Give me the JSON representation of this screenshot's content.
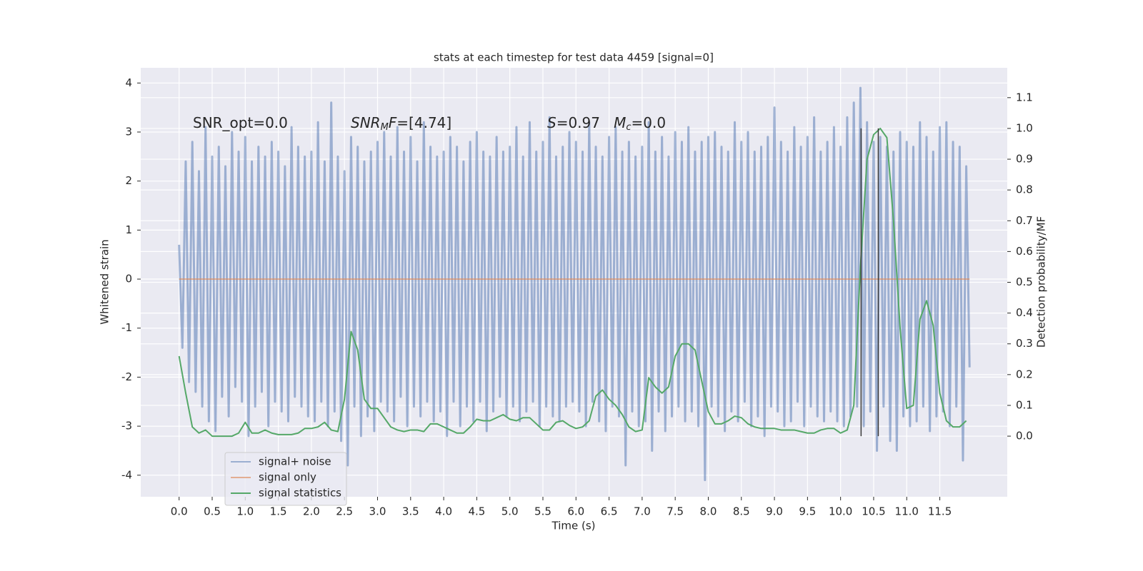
{
  "chart_data": {
    "type": "line",
    "title": "stats at each timestep for test data 4459 [signal=0]",
    "xlabel": "Time (s)",
    "ylabel": "Whitened strain",
    "y2label": "Detection probability/MF",
    "xlim": [
      -0.58,
      12.52
    ],
    "ylim": [
      -4.44,
      4.31
    ],
    "y2lim": [
      -0.197,
      1.197
    ],
    "xticks": [
      {
        "value": 0,
        "label": "0.0"
      },
      0.5,
      {
        "value": 1,
        "label": "1.0"
      },
      1.5,
      {
        "value": 2,
        "label": "2.0"
      },
      2.5,
      {
        "value": 3,
        "label": "3.0"
      },
      3.5,
      {
        "value": 4,
        "label": "4.0"
      },
      4.5,
      {
        "value": 5,
        "label": "5.0"
      },
      5.5,
      {
        "value": 6,
        "label": "6.0"
      },
      6.5,
      {
        "value": 7,
        "label": "7.0"
      },
      7.5,
      {
        "value": 8,
        "label": "8.0"
      },
      8.5,
      {
        "value": 9,
        "label": "9.0"
      },
      9.5,
      {
        "value": 10,
        "label": "10.0"
      },
      10.5,
      {
        "value": 11,
        "label": "11.0"
      },
      11.5
    ],
    "yticks": [
      -4,
      -3,
      -2,
      -1,
      0,
      1,
      2,
      3,
      4
    ],
    "y2ticks": [
      {
        "value": 0,
        "label": "0.0"
      },
      0.1,
      0.2,
      0.3,
      0.4,
      0.5,
      0.6,
      0.7,
      0.8,
      0.9,
      {
        "value": 1,
        "label": "1.0"
      },
      1.1
    ],
    "grid": true,
    "legend": "lower left",
    "annotations": [
      [
        {
          "text": "SNR_opt=0.0",
          "style": "normal"
        }
      ],
      [
        {
          "text": "SNR",
          "style": "italic"
        },
        {
          "text": "M",
          "style": "sub"
        },
        {
          "text": "F",
          "style": "italic"
        },
        {
          "text": "=[4.74]",
          "style": "normal"
        }
      ],
      [
        {
          "text": "S",
          "style": "italic"
        },
        {
          "text": "=0.97   ",
          "style": "normal"
        },
        {
          "text": "M",
          "style": "italic"
        },
        {
          "text": "c",
          "style": "sub"
        },
        {
          "text": "=0.0",
          "style": "normal"
        }
      ]
    ],
    "vlines": {
      "x": [
        10.31,
        10.57
      ],
      "ymin": 0,
      "ymax": 1.0,
      "axis": "y2",
      "color": "#3a3a3a"
    },
    "series": [
      {
        "name": "signal+ noise",
        "color": "#4c72b0",
        "opacity": 0.5,
        "x": [
          0,
          0.05,
          0.1,
          0.15,
          0.2,
          0.25,
          0.3,
          0.35,
          0.4,
          0.45,
          0.5,
          0.55,
          0.6,
          0.65,
          0.7,
          0.75,
          0.8,
          0.85,
          0.9,
          0.95,
          1,
          1.05,
          1.1,
          1.15,
          1.2,
          1.25,
          1.3,
          1.35,
          1.4,
          1.45,
          1.5,
          1.55,
          1.6,
          1.65,
          1.7,
          1.75,
          1.8,
          1.85,
          1.9,
          1.95,
          2,
          2.05,
          2.1,
          2.15,
          2.2,
          2.25,
          2.3,
          2.35,
          2.4,
          2.45,
          2.5,
          2.55,
          2.6,
          2.65,
          2.7,
          2.75,
          2.8,
          2.85,
          2.9,
          2.95,
          3,
          3.05,
          3.1,
          3.15,
          3.2,
          3.25,
          3.3,
          3.35,
          3.4,
          3.45,
          3.5,
          3.55,
          3.6,
          3.65,
          3.7,
          3.75,
          3.8,
          3.85,
          3.9,
          3.95,
          4,
          4.05,
          4.1,
          4.15,
          4.2,
          4.25,
          4.3,
          4.35,
          4.4,
          4.45,
          4.5,
          4.55,
          4.6,
          4.65,
          4.7,
          4.75,
          4.8,
          4.85,
          4.9,
          4.95,
          5,
          5.05,
          5.1,
          5.15,
          5.2,
          5.25,
          5.3,
          5.35,
          5.4,
          5.45,
          5.5,
          5.55,
          5.6,
          5.65,
          5.7,
          5.75,
          5.8,
          5.85,
          5.9,
          5.95,
          6,
          6.05,
          6.1,
          6.15,
          6.2,
          6.25,
          6.3,
          6.35,
          6.4,
          6.45,
          6.5,
          6.55,
          6.6,
          6.65,
          6.7,
          6.75,
          6.8,
          6.85,
          6.9,
          6.95,
          7,
          7.05,
          7.1,
          7.15,
          7.2,
          7.25,
          7.3,
          7.35,
          7.4,
          7.45,
          7.5,
          7.55,
          7.6,
          7.65,
          7.7,
          7.75,
          7.8,
          7.85,
          7.9,
          7.95,
          8,
          8.05,
          8.1,
          8.15,
          8.2,
          8.25,
          8.3,
          8.35,
          8.4,
          8.45,
          8.5,
          8.55,
          8.6,
          8.65,
          8.7,
          8.75,
          8.8,
          8.85,
          8.9,
          8.95,
          9,
          9.05,
          9.1,
          9.15,
          9.2,
          9.25,
          9.3,
          9.35,
          9.4,
          9.45,
          9.5,
          9.55,
          9.6,
          9.65,
          9.7,
          9.75,
          9.8,
          9.85,
          9.9,
          9.95,
          10,
          10.05,
          10.1,
          10.15,
          10.2,
          10.25,
          10.3,
          10.35,
          10.4,
          10.45,
          10.5,
          10.55,
          10.6,
          10.65,
          10.7,
          10.75,
          10.8,
          10.85,
          10.9,
          10.95,
          11,
          11.05,
          11.1,
          11.15,
          11.2,
          11.25,
          11.3,
          11.35,
          11.4,
          11.45,
          11.5,
          11.55,
          11.6,
          11.65,
          11.7,
          11.75,
          11.8,
          11.85,
          11.9,
          11.95
        ],
        "values": [
          0.7,
          -1.4,
          2.4,
          -2.1,
          2.8,
          -2.3,
          2.2,
          -2.6,
          3.1,
          -2.9,
          2.5,
          -3.1,
          2.7,
          -2.4,
          2.3,
          -2.8,
          3.0,
          -2.2,
          2.6,
          -2.5,
          2.9,
          -3.2,
          2.4,
          -2.6,
          2.7,
          -2.3,
          2.5,
          -3.0,
          2.8,
          -2.5,
          2.6,
          -2.7,
          2.3,
          -2.9,
          3.1,
          -2.4,
          2.7,
          -2.6,
          2.5,
          -2.8,
          2.6,
          -2.9,
          3.2,
          -2.5,
          2.4,
          -3.0,
          3.6,
          -2.7,
          2.5,
          -3.3,
          2.2,
          -3.8,
          2.9,
          -2.6,
          2.7,
          -3.2,
          2.4,
          -2.8,
          2.6,
          -3.1,
          2.8,
          -2.5,
          3.0,
          -2.7,
          2.5,
          -2.9,
          3.1,
          -2.4,
          2.6,
          -3.0,
          2.9,
          -2.6,
          2.4,
          -2.8,
          3.2,
          -2.5,
          2.7,
          -2.9,
          2.5,
          -2.7,
          2.6,
          -3.2,
          2.9,
          -2.5,
          2.7,
          -3.0,
          2.4,
          -2.6,
          2.8,
          -2.9,
          3.0,
          -2.5,
          2.6,
          -3.1,
          2.5,
          -2.7,
          2.9,
          -2.4,
          2.6,
          -2.8,
          2.7,
          -2.6,
          3.1,
          -2.9,
          2.5,
          -2.7,
          3.2,
          -2.5,
          2.6,
          -3.0,
          2.8,
          -2.6,
          3.3,
          -2.8,
          2.5,
          -2.9,
          2.7,
          -2.6,
          3.0,
          -2.5,
          2.8,
          -2.7,
          2.6,
          -3.0,
          3.2,
          -2.5,
          2.7,
          -2.9,
          2.5,
          -3.1,
          2.9,
          -2.6,
          3.1,
          -2.8,
          2.6,
          -3.8,
          2.8,
          -2.7,
          2.5,
          -3.0,
          2.7,
          -2.9,
          3.2,
          -3.5,
          2.6,
          -2.7,
          2.9,
          -3.1,
          2.5,
          -2.8,
          3.0,
          -2.6,
          2.8,
          -2.9,
          3.1,
          -2.7,
          2.6,
          -3.0,
          2.8,
          -4.1,
          2.9,
          -2.6,
          3.0,
          -2.8,
          2.7,
          -3.1,
          2.6,
          -2.7,
          3.2,
          -2.9,
          2.8,
          -2.5,
          3.0,
          -3.0,
          2.6,
          -2.8,
          2.7,
          -3.2,
          2.9,
          -2.6,
          3.5,
          -2.7,
          2.8,
          -3.0,
          2.6,
          -2.9,
          3.1,
          -2.5,
          2.7,
          -3.0,
          2.9,
          -2.6,
          3.3,
          -2.8,
          2.6,
          -2.9,
          2.8,
          -2.7,
          3.1,
          -2.9,
          2.7,
          -3.0,
          3.3,
          -2.8,
          3.6,
          -2.6,
          3.9,
          -3.0,
          3.2,
          -2.7,
          2.8,
          -3.5,
          2.9,
          -2.6,
          2.7,
          -3.3,
          2.6,
          -3.5,
          3.0,
          -2.8,
          2.8,
          -3.0,
          2.7,
          -2.9,
          3.2,
          -2.6,
          2.9,
          -3.1,
          2.6,
          -2.8,
          3.1,
          -2.7,
          3.2,
          -3.0,
          2.8,
          -2.6,
          2.7,
          -3.7,
          2.3,
          -1.8
        ]
      },
      {
        "name": "signal only",
        "color": "#dd8452",
        "opacity": 0.6,
        "x": [
          0,
          11.95
        ],
        "values": [
          0,
          0
        ]
      },
      {
        "name": "signal statistics",
        "color": "#55a868",
        "opacity": 1,
        "axis": "y2",
        "x": [
          0,
          0.1,
          0.2,
          0.3,
          0.4,
          0.5,
          0.6,
          0.7,
          0.8,
          0.9,
          1,
          1.1,
          1.2,
          1.3,
          1.4,
          1.5,
          1.6,
          1.7,
          1.8,
          1.9,
          2,
          2.1,
          2.2,
          2.3,
          2.4,
          2.5,
          2.6,
          2.7,
          2.8,
          2.9,
          3,
          3.1,
          3.2,
          3.3,
          3.4,
          3.5,
          3.6,
          3.7,
          3.8,
          3.9,
          4,
          4.1,
          4.2,
          4.3,
          4.4,
          4.5,
          4.6,
          4.7,
          4.8,
          4.9,
          5,
          5.1,
          5.2,
          5.3,
          5.4,
          5.5,
          5.6,
          5.7,
          5.8,
          5.9,
          6,
          6.1,
          6.2,
          6.3,
          6.4,
          6.5,
          6.6,
          6.7,
          6.8,
          6.9,
          7,
          7.1,
          7.2,
          7.3,
          7.4,
          7.5,
          7.6,
          7.7,
          7.8,
          7.9,
          8,
          8.1,
          8.2,
          8.3,
          8.4,
          8.5,
          8.6,
          8.7,
          8.8,
          8.9,
          9,
          9.1,
          9.2,
          9.3,
          9.4,
          9.5,
          9.6,
          9.7,
          9.8,
          9.9,
          10,
          10.1,
          10.2,
          10.3,
          10.4,
          10.5,
          10.6,
          10.7,
          10.8,
          10.9,
          11,
          11.1,
          11.2,
          11.3,
          11.4,
          11.5,
          11.6,
          11.7,
          11.8,
          11.9
        ],
        "values": [
          0.26,
          0.14,
          0.03,
          0.01,
          0.02,
          0.0,
          0.0,
          0.0,
          0.0,
          0.01,
          0.045,
          0.01,
          0.01,
          0.02,
          0.01,
          0.005,
          0.005,
          0.005,
          0.01,
          0.025,
          0.025,
          0.03,
          0.045,
          0.02,
          0.015,
          0.12,
          0.34,
          0.28,
          0.12,
          0.09,
          0.09,
          0.06,
          0.03,
          0.02,
          0.015,
          0.02,
          0.02,
          0.015,
          0.04,
          0.04,
          0.03,
          0.02,
          0.01,
          0.01,
          0.03,
          0.055,
          0.05,
          0.05,
          0.06,
          0.07,
          0.055,
          0.05,
          0.06,
          0.06,
          0.04,
          0.02,
          0.02,
          0.045,
          0.05,
          0.035,
          0.025,
          0.03,
          0.05,
          0.13,
          0.15,
          0.12,
          0.1,
          0.07,
          0.03,
          0.015,
          0.02,
          0.19,
          0.16,
          0.14,
          0.16,
          0.26,
          0.3,
          0.3,
          0.28,
          0.18,
          0.08,
          0.04,
          0.04,
          0.05,
          0.065,
          0.06,
          0.04,
          0.03,
          0.025,
          0.025,
          0.025,
          0.02,
          0.02,
          0.02,
          0.015,
          0.01,
          0.01,
          0.02,
          0.025,
          0.025,
          0.01,
          0.02,
          0.1,
          0.55,
          0.9,
          0.98,
          1.0,
          0.97,
          0.7,
          0.35,
          0.09,
          0.1,
          0.38,
          0.44,
          0.36,
          0.14,
          0.05,
          0.03,
          0.03,
          0.05
        ]
      }
    ]
  }
}
